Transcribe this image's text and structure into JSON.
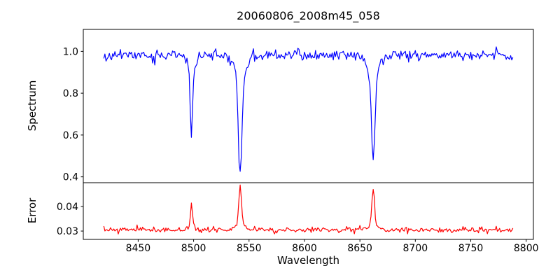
{
  "figure": {
    "title": "20060806_2008m45_058",
    "background_color": "#ffffff",
    "text_color": "#000000"
  },
  "chart_data": [
    {
      "type": "line",
      "subplot": "spectrum",
      "ylabel": "Spectrum",
      "xlabel": "",
      "line_color": "#0000ff",
      "x_range": [
        8400.5,
        8806.5
      ],
      "y_range": [
        0.372,
        1.105
      ],
      "y_ticks": [
        1.0,
        0.8,
        0.6,
        0.4
      ],
      "y_tick_labels": [
        "1.0",
        "0.8",
        "0.6",
        "0.4"
      ],
      "grid": false,
      "legend": "none",
      "data_x_start": 8419,
      "data_x_end": 8788,
      "data_x_step": 1.0,
      "continuum_level": 0.98,
      "noise_sigma": 0.012,
      "spike_prob": 0.05,
      "spike_amp": 0.045,
      "absorption_lines": [
        {
          "center": 8498,
          "min_value": 0.6,
          "depth": 0.38,
          "core_sigma": 1.1,
          "wing": 0.05,
          "wing_sigma": 4.0
        },
        {
          "center": 8542,
          "min_value": 0.41,
          "depth": 0.57,
          "core_sigma": 1.6,
          "wing": 0.11,
          "wing_sigma": 5.0
        },
        {
          "center": 8662,
          "min_value": 0.47,
          "depth": 0.51,
          "core_sigma": 1.5,
          "wing": 0.1,
          "wing_sigma": 5.0
        }
      ],
      "seed": 11
    },
    {
      "type": "line",
      "subplot": "error",
      "ylabel": "Error",
      "xlabel": "Wavelength",
      "line_color": "#ff0000",
      "x_range": [
        8400.5,
        8806.5
      ],
      "y_range": [
        0.0266,
        0.0497
      ],
      "x_ticks": [
        8450,
        8500,
        8550,
        8600,
        8650,
        8700,
        8750,
        8800
      ],
      "x_tick_labels": [
        "8450",
        "8500",
        "8550",
        "8600",
        "8650",
        "8700",
        "8750",
        "8800"
      ],
      "y_ticks": [
        0.04,
        0.03
      ],
      "y_tick_labels": [
        "0.04",
        "0.03"
      ],
      "grid": false,
      "legend": "none",
      "data_x_start": 8419,
      "data_x_end": 8788,
      "data_x_step": 1.0,
      "baseline": 0.0305,
      "noise_sigma": 0.00055,
      "spike_prob": 0.04,
      "spike_amp": 0.0012,
      "peaks": [
        {
          "center": 8498,
          "max_value": 0.0413,
          "height": 0.0108,
          "core_sigma": 0.9,
          "wing": 0.0012,
          "wing_sigma": 3.0
        },
        {
          "center": 8542,
          "max_value": 0.0478,
          "height": 0.0173,
          "core_sigma": 1.2,
          "wing": 0.0028,
          "wing_sigma": 4.0
        },
        {
          "center": 8662,
          "max_value": 0.0477,
          "height": 0.0172,
          "core_sigma": 1.1,
          "wing": 0.0022,
          "wing_sigma": 3.5
        }
      ],
      "seed": 7
    }
  ]
}
